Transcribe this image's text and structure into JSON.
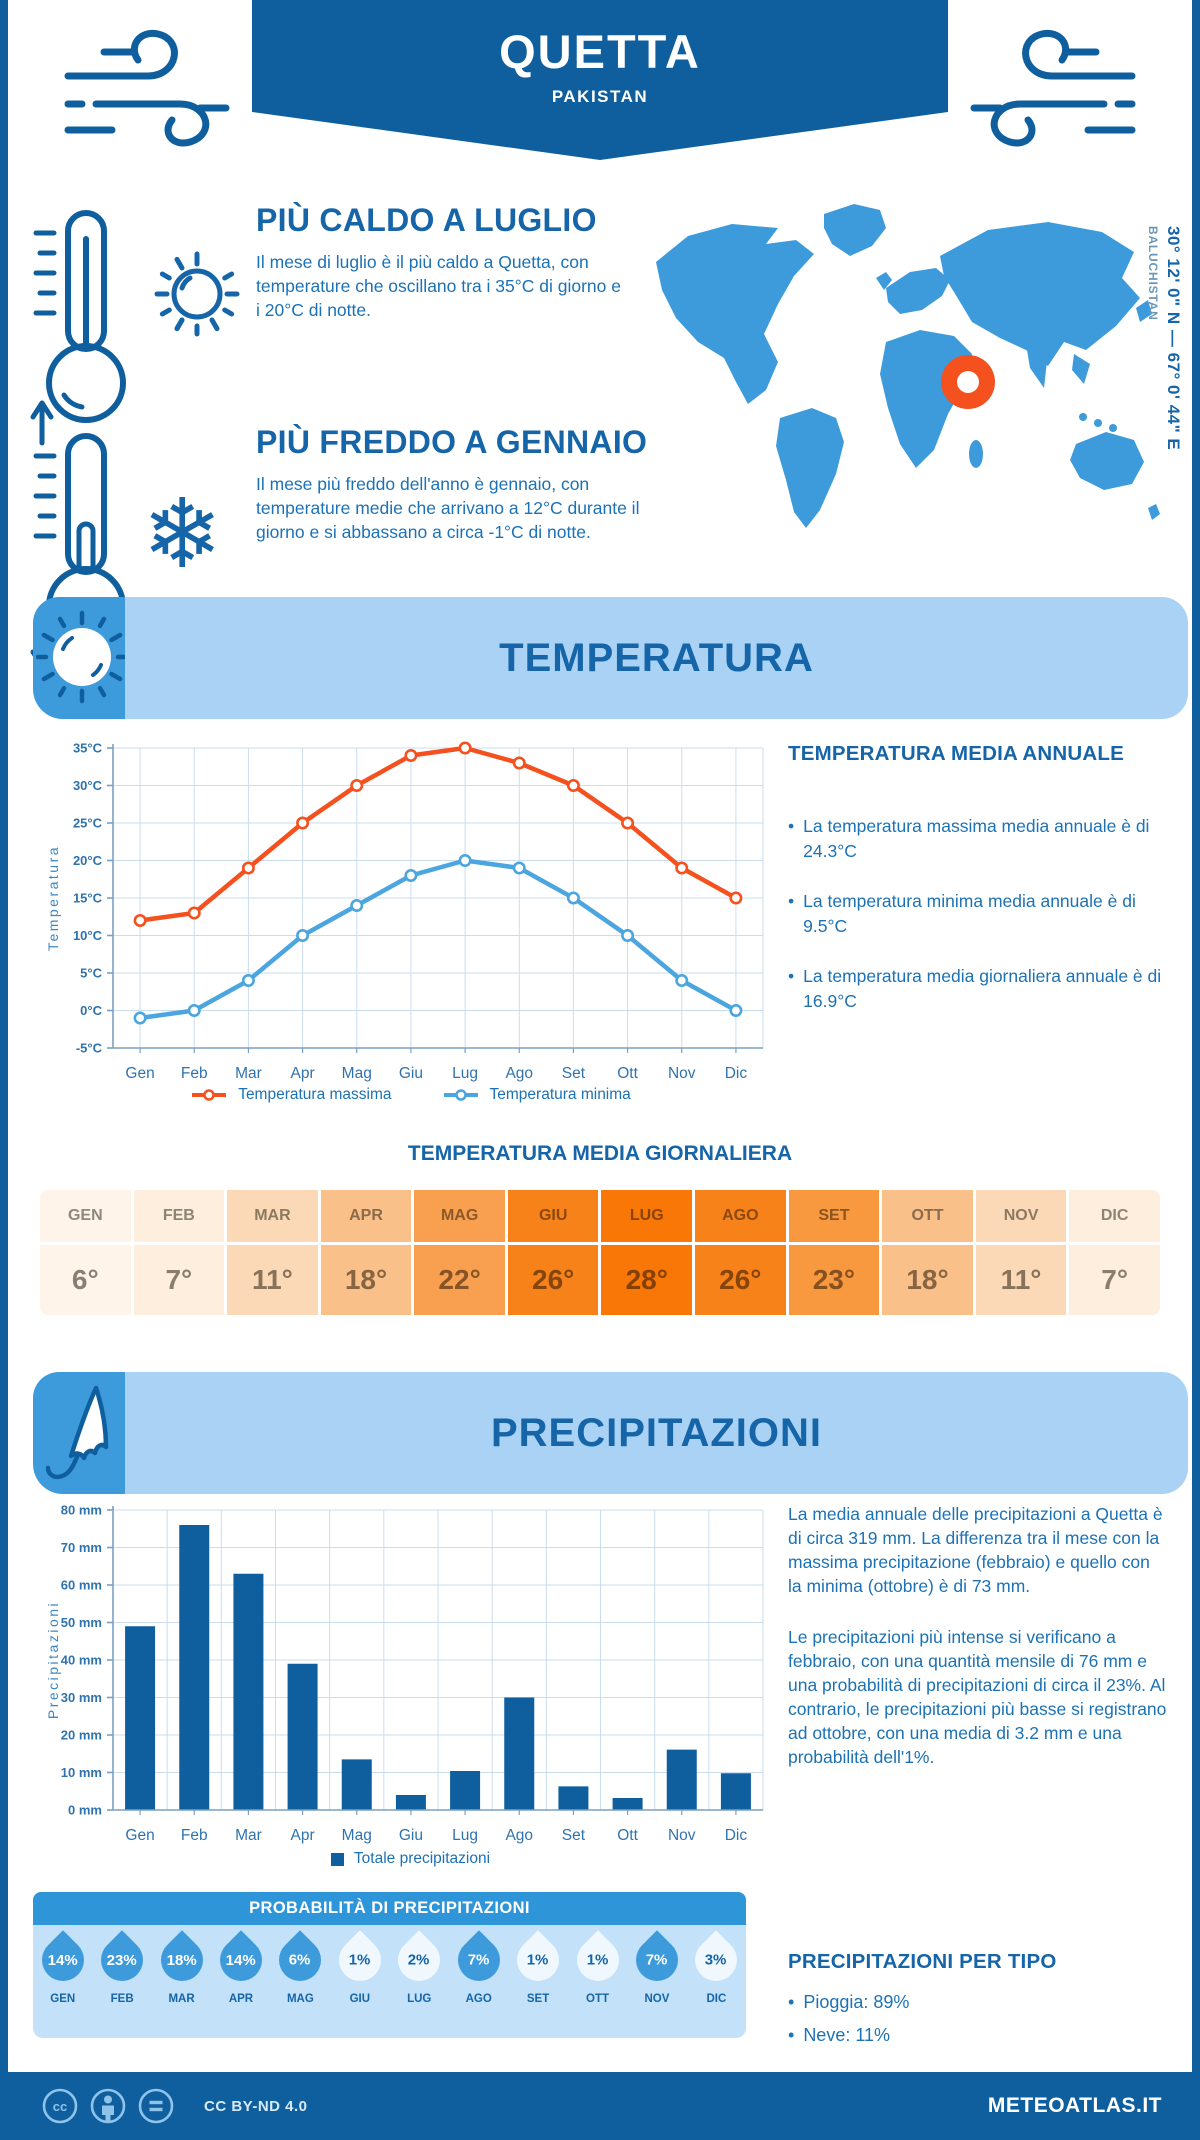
{
  "header": {
    "city": "QUETTA",
    "country": "PAKISTAN"
  },
  "location": {
    "coordinates": "30° 12' 0\" N — 67° 0' 44\" E",
    "region": "BALUCHISTAN"
  },
  "highlights": {
    "hot": {
      "title": "PIÙ CALDO A LUGLIO",
      "text": "Il mese di luglio è il più caldo a Quetta, con temperature che oscillano tra i 35°C di giorno e i 20°C di notte."
    },
    "cold": {
      "title": "PIÙ FREDDO A GENNAIO",
      "text": "Il mese più freddo dell'anno è gennaio, con temperature medie che arrivano a 12°C durante il giorno e si abbassano a circa -1°C di notte."
    }
  },
  "temperature_section": {
    "banner": "TEMPERATURA",
    "annual": {
      "title": "TEMPERATURA MEDIA ANNUALE",
      "bullets": [
        "La temperatura massima media annuale è di 24.3°C",
        "La temperatura minima media annuale è di 9.5°C",
        "La temperatura media giornaliera annuale è di 16.9°C"
      ]
    }
  },
  "precipitation_section": {
    "banner": "PRECIPITAZIONI",
    "paragraphs": [
      "La media annuale delle precipitazioni a Quetta è di circa 319 mm. La differenza tra il mese con la massima precipitazione (febbraio) e quello con la minima (ottobre) è di 73 mm.",
      "Le precipitazioni più intense si verificano a febbraio, con una quantità mensile di 76 mm e una probabilità di precipitazioni di circa il 23%. Al contrario, le precipitazioni più basse si registrano ad ottobre, con una media di 3.2 mm e una probabilità dell'1%."
    ],
    "by_type": {
      "title": "PRECIPITAZIONI PER TIPO",
      "items": [
        "Pioggia: 89%",
        "Neve: 11%"
      ]
    }
  },
  "chart_data": [
    {
      "id": "temp_lines",
      "type": "line",
      "categories": [
        "Gen",
        "Feb",
        "Mar",
        "Apr",
        "Mag",
        "Giu",
        "Lug",
        "Ago",
        "Set",
        "Ott",
        "Nov",
        "Dic"
      ],
      "series": [
        {
          "name": "Temperatura massima",
          "color": "#F4511E",
          "values": [
            12,
            13,
            19,
            25,
            30,
            34,
            35,
            33,
            30,
            25,
            19,
            15
          ]
        },
        {
          "name": "Temperatura minima",
          "color": "#4BA5DF",
          "values": [
            -1,
            0,
            4,
            10,
            14,
            18,
            20,
            19,
            15,
            10,
            4,
            0
          ]
        }
      ],
      "ylabel": "Temperatura",
      "ylim": [
        -5,
        35
      ],
      "ytick_step": 5,
      "ytick_suffix": "°C",
      "grid": true,
      "legend_position": "bottom"
    },
    {
      "id": "precip_bars",
      "type": "bar",
      "categories": [
        "Gen",
        "Feb",
        "Mar",
        "Apr",
        "Mag",
        "Giu",
        "Lug",
        "Ago",
        "Set",
        "Ott",
        "Nov",
        "Dic"
      ],
      "values": [
        49,
        76,
        63,
        39,
        13.5,
        4,
        10.4,
        30,
        6.3,
        3.2,
        16.1,
        9.8
      ],
      "series_name": "Totale precipitazioni",
      "color": "#0F5F9E",
      "ylabel": "Precipitazioni",
      "ylim": [
        0,
        80
      ],
      "ytick_step": 10,
      "ytick_suffix": " mm",
      "grid": true,
      "legend_position": "bottom"
    },
    {
      "id": "daily_temp_table",
      "type": "table",
      "title": "TEMPERATURA MEDIA GIORNALIERA",
      "columns": [
        "GEN",
        "FEB",
        "MAR",
        "APR",
        "MAG",
        "GIU",
        "LUG",
        "AGO",
        "SET",
        "OTT",
        "NOV",
        "DIC"
      ],
      "values": [
        "6°",
        "7°",
        "11°",
        "18°",
        "22°",
        "26°",
        "28°",
        "26°",
        "23°",
        "18°",
        "11°",
        "7°"
      ],
      "cell_colors": [
        "#FEF4EA",
        "#FDEEDD",
        "#FBD9B6",
        "#FAC08A",
        "#F9A050",
        "#F8821A",
        "#F87707",
        "#F8821A",
        "#F9993F",
        "#FAC08A",
        "#FBD9B6",
        "#FDEEDD"
      ]
    },
    {
      "id": "precip_probability",
      "type": "table",
      "title": "PROBABILITÀ DI PRECIPITAZIONI",
      "months": [
        "GEN",
        "FEB",
        "MAR",
        "APR",
        "MAG",
        "GIU",
        "LUG",
        "AGO",
        "SET",
        "OTT",
        "NOV",
        "DIC"
      ],
      "values": [
        "14%",
        "23%",
        "18%",
        "14%",
        "6%",
        "1%",
        "2%",
        "7%",
        "1%",
        "1%",
        "7%",
        "3%"
      ],
      "filled": [
        true,
        true,
        true,
        true,
        true,
        false,
        false,
        true,
        false,
        false,
        true,
        false
      ]
    }
  ],
  "footer": {
    "license": "CC BY-ND 4.0",
    "brand": "METEOATLAS.IT"
  },
  "ui": {
    "bullet": "•"
  },
  "colors": {
    "primary_dark": "#0F5F9E",
    "heading_blue": "#1565A8",
    "body_blue": "#1C72B5",
    "banner_light": "#A9D2F4",
    "medium_blue": "#3D9BDC",
    "panel_light": "#C3E1F8",
    "prob_header": "#2E95D8",
    "marker_orange": "#F4511E",
    "droplet_light": "#F0F8FE"
  }
}
